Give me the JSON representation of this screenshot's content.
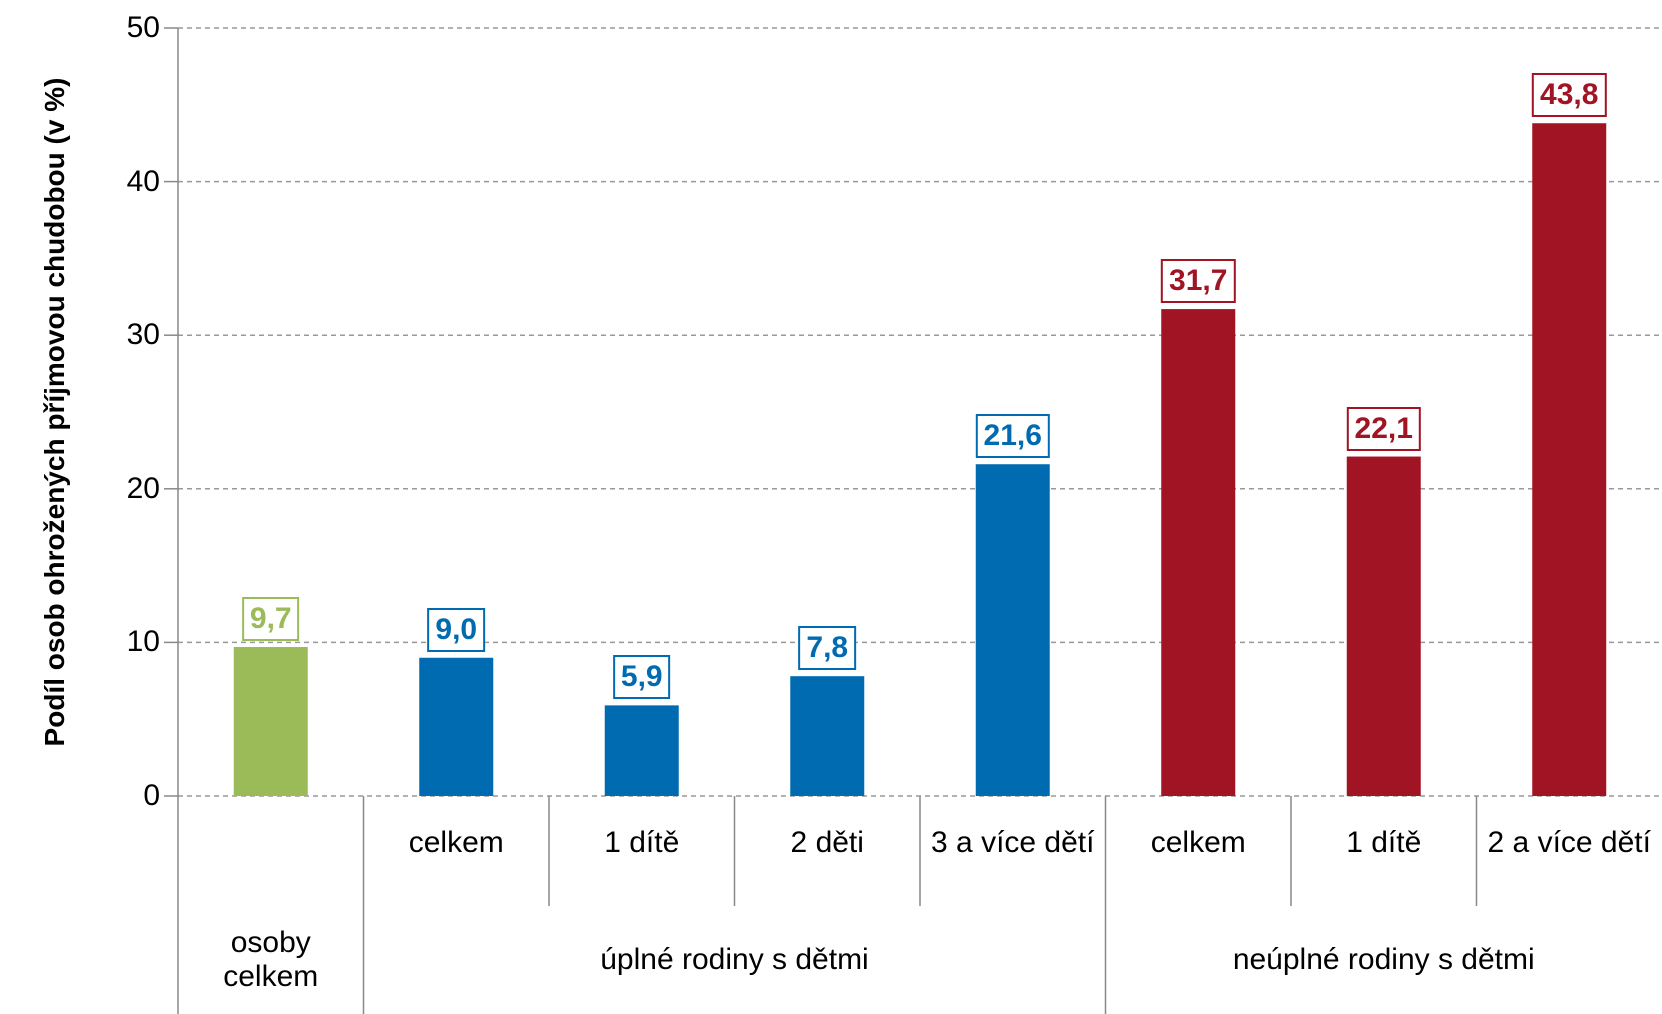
{
  "chart_data": {
    "type": "bar",
    "y_label": "Podíl osob ohrožených příjmovou chudobou (v %)",
    "ylim": [
      0,
      50
    ],
    "yticks": [
      0,
      10,
      20,
      30,
      40,
      50
    ],
    "grid": true,
    "groups": [
      {
        "name": "osoby celkem",
        "color": "#9bbb59",
        "categories": [
          null
        ],
        "values": [
          9.7
        ],
        "value_labels": [
          "9,7"
        ]
      },
      {
        "name": "úplné rodiny s dětmi",
        "color": "#006bb0",
        "categories": [
          "celkem",
          "1 dítě",
          "2 děti",
          "3 a více dětí"
        ],
        "values": [
          9.0,
          5.9,
          7.8,
          21.6
        ],
        "value_labels": [
          "9,0",
          "5,9",
          "7,8",
          "21,6"
        ]
      },
      {
        "name": "neúplné rodiny s dětmi",
        "color": "#a01423",
        "categories": [
          "celkem",
          "1 dítě",
          "2 a více dětí"
        ],
        "values": [
          31.7,
          22.1,
          43.8
        ],
        "value_labels": [
          "31,7",
          "22,1",
          "43,8"
        ]
      }
    ]
  }
}
